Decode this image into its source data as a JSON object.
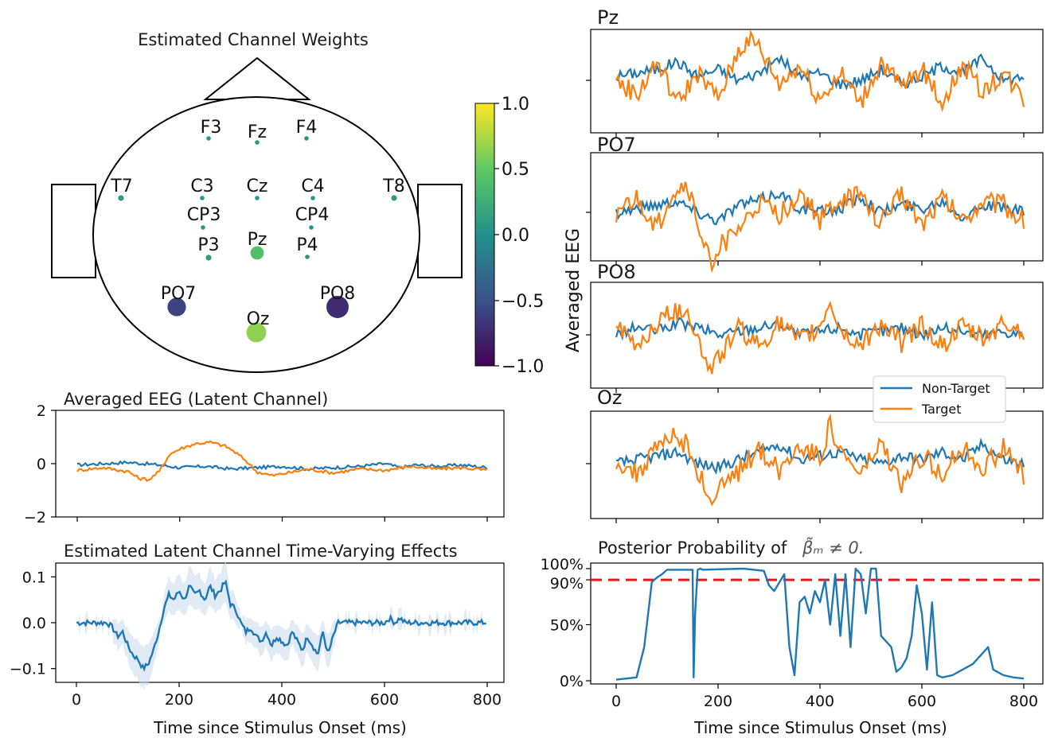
{
  "colors": {
    "non_target": "#1f77b4",
    "target": "#ff7f0e",
    "threshold": "#e31a1c",
    "band": "#c6dbef"
  },
  "chart_data": [
    {
      "id": "topomap",
      "type": "scatter",
      "title": "Estimated Channel Weights",
      "colorbar": {
        "ticks": [
          "1.0",
          "0.5",
          "0.0",
          "−0.5",
          "−1.0"
        ],
        "range": [
          -1.0,
          1.0
        ],
        "colormap": "viridis"
      },
      "electrodes": [
        {
          "label": "F3",
          "weight": 0.05
        },
        {
          "label": "Fz",
          "weight": 0.05
        },
        {
          "label": "F4",
          "weight": 0.05
        },
        {
          "label": "T7",
          "weight": 0.1
        },
        {
          "label": "C3",
          "weight": 0.05
        },
        {
          "label": "Cz",
          "weight": 0.05
        },
        {
          "label": "C4",
          "weight": 0.05
        },
        {
          "label": "T8",
          "weight": 0.1
        },
        {
          "label": "CP3",
          "weight": 0.05
        },
        {
          "label": "CP4",
          "weight": 0.05
        },
        {
          "label": "P3",
          "weight": 0.1
        },
        {
          "label": "Pz",
          "weight": 0.4
        },
        {
          "label": "P4",
          "weight": 0.05
        },
        {
          "label": "PO7",
          "weight": -0.6
        },
        {
          "label": "Oz",
          "weight": 0.65
        },
        {
          "label": "PO8",
          "weight": -0.75
        }
      ]
    },
    {
      "id": "latent_eeg",
      "type": "line",
      "title": "Averaged EEG (Latent Channel)",
      "ylim": [
        -2,
        2
      ],
      "yticks": [
        "2",
        "0",
        "−2"
      ],
      "xlim": [
        0,
        800
      ],
      "series": [
        {
          "name": "Non-Target",
          "x": [
            0,
            50,
            100,
            130,
            160,
            200,
            250,
            300,
            350,
            400,
            450,
            500,
            550,
            600,
            630,
            660,
            700,
            750,
            800
          ],
          "values": [
            -0.05,
            0.0,
            0.05,
            0.0,
            -0.05,
            -0.15,
            -0.1,
            -0.2,
            -0.15,
            -0.1,
            -0.2,
            -0.15,
            -0.1,
            0.0,
            -0.15,
            -0.05,
            -0.1,
            -0.05,
            -0.15
          ]
        },
        {
          "name": "Target",
          "x": [
            0,
            50,
            100,
            120,
            140,
            160,
            180,
            200,
            230,
            260,
            290,
            310,
            330,
            350,
            380,
            410,
            450,
            500,
            550,
            600,
            650,
            700,
            750,
            800
          ],
          "values": [
            -0.25,
            -0.15,
            -0.3,
            -0.55,
            -0.6,
            -0.3,
            0.35,
            0.55,
            0.75,
            0.8,
            0.65,
            0.4,
            0.1,
            -0.3,
            -0.45,
            -0.35,
            -0.2,
            -0.35,
            -0.2,
            -0.25,
            -0.1,
            -0.2,
            -0.15,
            -0.25
          ]
        }
      ]
    },
    {
      "id": "tv_effects",
      "type": "line",
      "title": "Estimated Latent Channel Time-Varying Effects",
      "xlim": [
        0,
        800
      ],
      "ylim": [
        -0.13,
        0.13
      ],
      "yticks": [
        "0.1",
        "0.0",
        "−0.1"
      ],
      "xticks": [
        "0",
        "200",
        "400",
        "600",
        "800"
      ],
      "xlabel": "Time since Stimulus Onset (ms)",
      "series": [
        {
          "name": "Effect",
          "x": [
            0,
            60,
            70,
            80,
            90,
            100,
            110,
            120,
            130,
            140,
            150,
            160,
            170,
            180,
            190,
            200,
            210,
            220,
            230,
            240,
            250,
            260,
            270,
            280,
            290,
            300,
            310,
            320,
            330,
            340,
            350,
            360,
            370,
            380,
            390,
            400,
            410,
            420,
            430,
            440,
            450,
            460,
            470,
            480,
            490,
            500,
            510,
            520,
            600,
            610,
            620,
            630,
            640,
            800
          ],
          "values": [
            0.0,
            0.0,
            -0.01,
            -0.03,
            -0.02,
            -0.05,
            -0.07,
            -0.08,
            -0.1,
            -0.09,
            -0.06,
            -0.02,
            0.03,
            0.06,
            0.05,
            0.07,
            0.05,
            0.08,
            0.06,
            0.07,
            0.05,
            0.08,
            0.06,
            0.07,
            0.09,
            0.04,
            0.03,
            0.0,
            -0.02,
            -0.01,
            -0.03,
            -0.04,
            -0.02,
            -0.05,
            -0.03,
            -0.04,
            -0.05,
            -0.02,
            -0.04,
            -0.06,
            -0.03,
            -0.05,
            -0.07,
            -0.02,
            -0.07,
            -0.03,
            0.0,
            0.0,
            0.0,
            0.01,
            0.0,
            0.01,
            0.0,
            0.0
          ]
        }
      ]
    },
    {
      "id": "eeg_Pz",
      "type": "line",
      "title": "Pz",
      "xlim": [
        0,
        800
      ],
      "series": [
        {
          "name": "Non-Target",
          "x": [
            0,
            40,
            80,
            120,
            160,
            200,
            240,
            280,
            320,
            360,
            400,
            440,
            480,
            520,
            560,
            600,
            640,
            680,
            720,
            760,
            800
          ],
          "values": [
            0.1,
            0.2,
            0.3,
            0.5,
            0.1,
            0.3,
            0.0,
            0.2,
            0.6,
            0.1,
            0.2,
            -0.1,
            0.0,
            0.3,
            -0.1,
            0.1,
            0.4,
            0.2,
            0.6,
            0.0,
            0.1
          ]
        },
        {
          "name": "Target",
          "x": [
            0,
            40,
            80,
            120,
            160,
            200,
            240,
            260,
            280,
            320,
            360,
            400,
            440,
            480,
            520,
            560,
            600,
            640,
            680,
            720,
            760,
            800
          ],
          "values": [
            0.0,
            -0.4,
            0.5,
            -0.6,
            0.2,
            -0.5,
            0.8,
            1.1,
            0.9,
            -0.1,
            0.4,
            -0.5,
            0.2,
            -0.6,
            0.5,
            -0.2,
            0.3,
            -0.6,
            0.4,
            -0.3,
            0.2,
            -0.5
          ]
        }
      ]
    },
    {
      "id": "eeg_PO7",
      "type": "line",
      "title": "PO7",
      "xlim": [
        0,
        800
      ],
      "series": [
        {
          "name": "Non-Target",
          "x": [
            0,
            40,
            80,
            120,
            160,
            200,
            240,
            280,
            320,
            360,
            400,
            440,
            480,
            520,
            560,
            600,
            640,
            680,
            720,
            760,
            800
          ],
          "values": [
            0.0,
            0.1,
            0.2,
            0.3,
            0.0,
            -0.2,
            0.2,
            0.3,
            0.5,
            0.1,
            0.0,
            0.1,
            0.4,
            0.0,
            0.2,
            0.1,
            0.3,
            -0.1,
            0.2,
            0.1,
            0.0
          ]
        },
        {
          "name": "Target",
          "x": [
            0,
            40,
            80,
            110,
            140,
            170,
            185,
            200,
            240,
            280,
            320,
            360,
            400,
            440,
            480,
            520,
            560,
            600,
            640,
            680,
            720,
            760,
            800
          ],
          "values": [
            0.0,
            0.3,
            -0.4,
            0.5,
            0.7,
            -0.8,
            -1.3,
            -0.9,
            -0.5,
            0.2,
            -0.1,
            0.5,
            -0.2,
            0.3,
            0.4,
            -0.3,
            0.5,
            -0.3,
            0.4,
            -0.2,
            0.3,
            0.2,
            -0.2
          ]
        }
      ]
    },
    {
      "id": "eeg_PO8",
      "type": "line",
      "title": "PO8",
      "xlim": [
        0,
        800
      ],
      "series": [
        {
          "name": "Non-Target",
          "x": [
            0,
            40,
            80,
            120,
            160,
            200,
            240,
            280,
            320,
            360,
            400,
            440,
            480,
            520,
            560,
            600,
            640,
            680,
            720,
            760,
            800
          ],
          "values": [
            0.0,
            0.2,
            0.1,
            0.3,
            0.2,
            0.0,
            0.1,
            0.2,
            0.3,
            0.0,
            0.1,
            0.2,
            0.0,
            0.1,
            0.2,
            0.0,
            0.2,
            0.1,
            0.0,
            0.1,
            0.0
          ]
        },
        {
          "name": "Target",
          "x": [
            0,
            40,
            80,
            110,
            140,
            170,
            185,
            200,
            240,
            280,
            320,
            360,
            400,
            420,
            440,
            480,
            520,
            560,
            600,
            640,
            680,
            720,
            760,
            800
          ],
          "values": [
            0.2,
            -0.3,
            0.3,
            0.6,
            0.7,
            -0.5,
            -0.9,
            -0.6,
            0.2,
            -0.3,
            0.3,
            -0.2,
            0.2,
            0.9,
            0.1,
            -0.3,
            0.3,
            -0.2,
            0.3,
            -0.3,
            0.2,
            -0.1,
            0.3,
            0.1
          ]
        }
      ]
    },
    {
      "id": "eeg_Oz",
      "type": "line",
      "title": "Oz",
      "xlim": [
        0,
        800
      ],
      "series": [
        {
          "name": "Non-Target",
          "x": [
            0,
            40,
            80,
            120,
            160,
            200,
            240,
            280,
            320,
            360,
            400,
            440,
            480,
            520,
            560,
            600,
            640,
            680,
            720,
            760,
            800
          ],
          "values": [
            0.0,
            0.1,
            0.2,
            0.3,
            0.0,
            -0.1,
            0.1,
            0.3,
            0.5,
            0.1,
            0.2,
            0.3,
            0.1,
            0.0,
            0.2,
            0.1,
            0.3,
            0.1,
            0.5,
            0.1,
            0.0
          ]
        },
        {
          "name": "Target",
          "x": [
            0,
            40,
            80,
            110,
            140,
            170,
            185,
            200,
            240,
            280,
            320,
            360,
            400,
            420,
            440,
            480,
            520,
            560,
            600,
            640,
            680,
            720,
            760,
            800
          ],
          "values": [
            0.1,
            -0.3,
            0.4,
            0.7,
            0.5,
            -0.5,
            -1.0,
            -0.7,
            -0.2,
            0.4,
            -0.2,
            0.5,
            0.2,
            1.0,
            0.3,
            -0.3,
            0.5,
            -0.6,
            0.2,
            -0.2,
            0.4,
            -0.1,
            0.4,
            -0.3
          ]
        }
      ]
    },
    {
      "id": "posterior",
      "type": "line",
      "title": "Posterior Probability of",
      "title_formula": "β̃ₘ ≠ 0.",
      "ylim": [
        0,
        100
      ],
      "yticks": [
        "100%",
        "90%",
        "50%",
        "0%"
      ],
      "xticks": [
        "0",
        "200",
        "400",
        "600",
        "800"
      ],
      "xlabel": "Time since Stimulus Onset (ms)",
      "threshold": 90,
      "series": [
        {
          "name": "Probability",
          "x": [
            0,
            40,
            55,
            70,
            80,
            90,
            100,
            150,
            152,
            155,
            160,
            165,
            170,
            250,
            290,
            300,
            310,
            330,
            340,
            350,
            360,
            370,
            380,
            390,
            400,
            410,
            420,
            430,
            440,
            450,
            460,
            470,
            480,
            490,
            500,
            510,
            520,
            540,
            550,
            560,
            570,
            580,
            590,
            600,
            610,
            620,
            630,
            640,
            660,
            680,
            700,
            710,
            720,
            730,
            740,
            760,
            780,
            800
          ],
          "values": [
            1,
            3,
            30,
            88,
            92,
            95,
            99,
            99,
            3,
            60,
            99,
            100,
            99,
            100,
            98,
            85,
            80,
            95,
            30,
            5,
            70,
            75,
            60,
            80,
            70,
            90,
            50,
            95,
            40,
            95,
            30,
            100,
            95,
            60,
            100,
            100,
            40,
            30,
            8,
            12,
            20,
            40,
            85,
            60,
            10,
            70,
            5,
            3,
            5,
            10,
            15,
            20,
            25,
            30,
            10,
            5,
            3,
            2
          ]
        }
      ]
    }
  ],
  "axis_labels": {
    "averaged_eeg": "Averaged EEG",
    "time_left": "Time since Stimulus Onset (ms)",
    "time_right": "Time since Stimulus Onset (ms)"
  },
  "legend": {
    "items": [
      "Non-Target",
      "Target"
    ]
  }
}
